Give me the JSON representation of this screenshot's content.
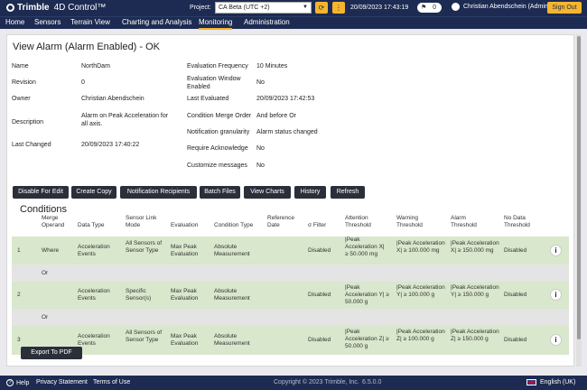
{
  "header": {
    "brand": "Trimble",
    "product": "4D Control™",
    "project_label": "Project:",
    "project_value": "CA Beta (UTC +2)",
    "datetime": "20/09/2023 17:43:19",
    "notification_count": "0",
    "user": "Christian Abendschein (Admin)",
    "sign_out": "Sign Out"
  },
  "nav": [
    "Home",
    "Sensors",
    "Terrain View",
    "Charting and Analysis",
    "Monitoring",
    "Administration"
  ],
  "view_title": "View Alarm (Alarm Enabled) - OK",
  "details_left": [
    {
      "label": "Name",
      "value": "NorthDam"
    },
    {
      "label": "Revision",
      "value": "0"
    },
    {
      "label": "Owner",
      "value": "Christian Abendschein"
    },
    {
      "label": "Description",
      "value": "Alarm on Peak Acceleration for all axis."
    },
    {
      "label": "Last Changed",
      "value": "20/09/2023 17:40:22"
    }
  ],
  "details_right": [
    {
      "label": "Evaluation Frequency",
      "value": "10 Minutes"
    },
    {
      "label": "Evaluation Window Enabled",
      "value": "No"
    },
    {
      "label": "Last Evaluated",
      "value": "20/09/2023 17:42:53"
    },
    {
      "label": "Condition Merge Order",
      "value": "And before Or"
    },
    {
      "label": "Notification granularity",
      "value": "Alarm status changed"
    },
    {
      "label": "Require Acknowledge",
      "value": "No"
    },
    {
      "label": "Customize messages",
      "value": "No"
    }
  ],
  "actions": [
    "Disable For Edit",
    "Create Copy",
    "Notification Recipients",
    "Batch Files",
    "View Charts",
    "History",
    "Refresh"
  ],
  "conditions_title": "Conditions",
  "columns": [
    "Merge Operand",
    "Data Type",
    "Sensor Link Mode",
    "Evaluation",
    "Condition Type",
    "Reference Date",
    "σ Filter",
    "Attention Threshold",
    "Warning Threshold",
    "Alarm Threshold",
    "No Data Threshold"
  ],
  "rows": [
    {
      "num": "1",
      "operand": "Where",
      "data_type": "Acceleration Events",
      "link_mode": "All Sensors of Sensor Type",
      "evaluation": "Max Peak Evaluation",
      "condition_type": "Absolute Measurement",
      "reference_date": "",
      "filter": "Disabled",
      "attention": "|Peak Acceleration X| ≥ 50.000 mg",
      "warning": "|Peak Acceleration X| ≥ 100.000 mg",
      "alarm": "|Peak Acceleration X| ≥ 150.000 mg",
      "no_data": "Disabled"
    },
    {
      "num": "2",
      "operand": "",
      "data_type": "Acceleration Events",
      "link_mode": "Specific Sensor(s)",
      "evaluation": "Max Peak Evaluation",
      "condition_type": "Absolute Measurement",
      "reference_date": "",
      "filter": "Disabled",
      "attention": "|Peak Acceleration Y| ≥ 50.000 g",
      "warning": "|Peak Acceleration Y| ≥ 100.000 g",
      "alarm": "|Peak Acceleration Y| ≥ 150.000 g",
      "no_data": "Disabled"
    },
    {
      "num": "3",
      "operand": "",
      "data_type": "Acceleration Events",
      "link_mode": "All Sensors of Sensor Type",
      "evaluation": "Max Peak Evaluation",
      "condition_type": "Absolute Measurement",
      "reference_date": "",
      "filter": "Disabled",
      "attention": "|Peak Acceleration Z| ≥ 50.000 g",
      "warning": "|Peak Acceleration Z| ≥ 100.000 g",
      "alarm": "|Peak Acceleration Z| ≥ 150.000 g",
      "no_data": "Disabled"
    }
  ],
  "separators": [
    "Or",
    "Or"
  ],
  "export": "Export To PDF",
  "footer": {
    "help": "Help",
    "privacy": "Privacy Statement",
    "terms": "Terms of Use",
    "copyright": "Copyright © 2023 Trimble, Inc.",
    "version": "6.5.0.0",
    "language": "English (UK)"
  },
  "colors": {
    "navy": "#1d2b52",
    "accent": "#f5b52e",
    "row_green": "#d9e7cc",
    "button_dark": "#2a2f3a"
  },
  "icons": [
    "trimble-logo-icon",
    "refresh-icon",
    "more-icon",
    "flag-icon",
    "avatar-icon",
    "info-icon",
    "help-icon",
    "uk-flag-icon"
  ]
}
